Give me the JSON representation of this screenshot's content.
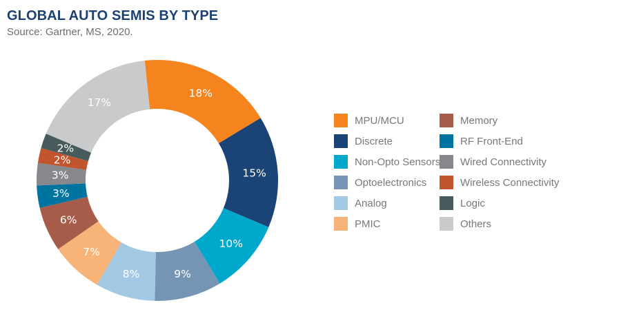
{
  "header": {
    "title": "GLOBAL AUTO SEMIS BY TYPE",
    "source": "Source: Gartner, MS, 2020."
  },
  "colors": {
    "title": "#1B4272",
    "source": "#6D6E71",
    "legend_text": "#77787B",
    "pie_label_text": "#FFFFFF"
  },
  "chart_data": {
    "type": "pie",
    "subtype": "donut",
    "title": "GLOBAL AUTO SEMIS BY TYPE",
    "source": "Source: Gartner, MS, 2020.",
    "start_angle_deg": -6,
    "direction": "clockwise",
    "legend_position": "right",
    "legend_columns": 2,
    "categories": [
      "MPU/MCU",
      "Discrete",
      "Non-Opto Sensors",
      "Optoelectronics",
      "Analog",
      "PMIC",
      "Memory",
      "RF Front-End",
      "Wired Connectivity",
      "Wireless Connectivity",
      "Logic",
      "Others"
    ],
    "values": [
      18,
      15,
      10,
      9,
      8,
      7,
      6,
      3,
      3,
      2,
      2,
      17
    ],
    "labels": [
      "18%",
      "15%",
      "10%",
      "9%",
      "8%",
      "7%",
      "6%",
      "3%",
      "3%",
      "2%",
      "2%",
      "17%"
    ],
    "colors": [
      "#F5841F",
      "#1A4376",
      "#00A8CC",
      "#7695B5",
      "#A3C8E3",
      "#F8B379",
      "#A65C48",
      "#0074A1",
      "#86888B",
      "#C1552E",
      "#475B5C",
      "#C9CACC"
    ]
  }
}
